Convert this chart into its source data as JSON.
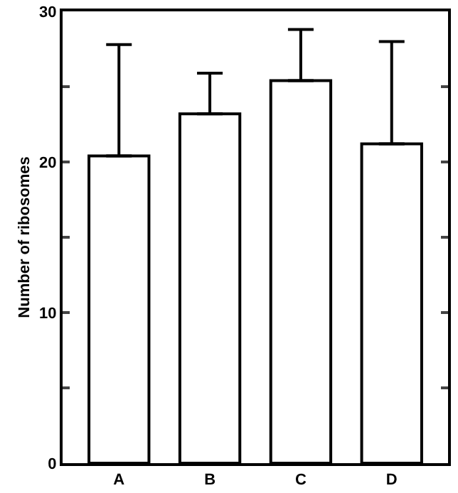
{
  "chart_data": {
    "type": "bar",
    "ylabel": "Number of ribosomes",
    "categories": [
      "A",
      "B",
      "C",
      "D"
    ],
    "values": [
      20.4,
      23.2,
      25.4,
      21.2
    ],
    "errors": [
      [
        20.4,
        27.8
      ],
      [
        23.2,
        25.9
      ],
      [
        25.4,
        28.8
      ],
      [
        21.2,
        28.0
      ]
    ],
    "color": "#ffffff",
    "ylim": [
      0,
      30
    ],
    "yticks": [
      0,
      {
        "value": 5,
        "label": null
      },
      10,
      {
        "value": 15,
        "label": null
      },
      20,
      {
        "value": 25,
        "label": null
      },
      30
    ],
    "grid": false
  }
}
